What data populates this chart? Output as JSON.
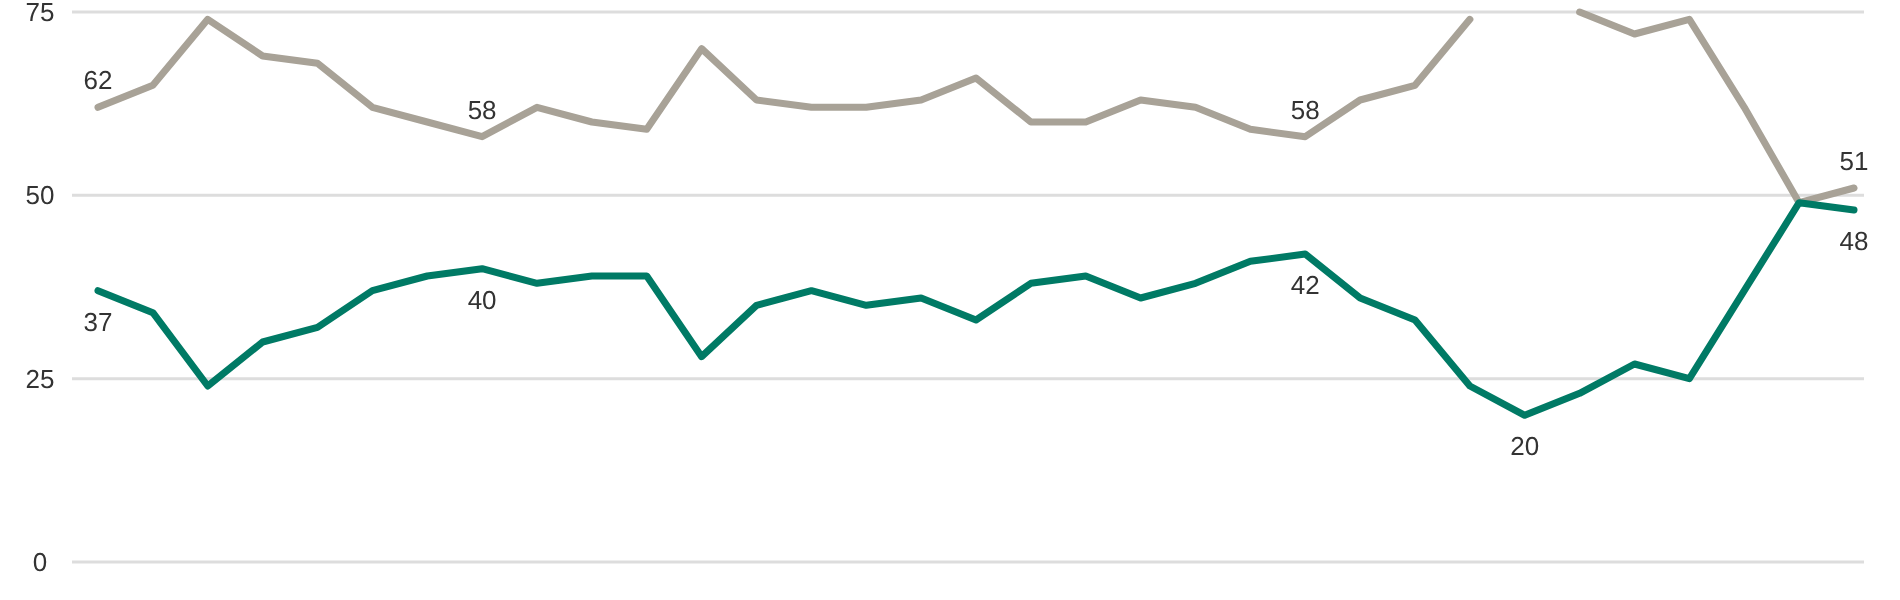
{
  "chart_data": {
    "type": "line",
    "categories": [
      null,
      null,
      null,
      null,
      null,
      null,
      null,
      null,
      null,
      null,
      null,
      null,
      null,
      null,
      null,
      null,
      null,
      null,
      null,
      null,
      null,
      null,
      null,
      null,
      null,
      null,
      null,
      null,
      null,
      null,
      null,
      null,
      null
    ],
    "series": [
      {
        "color": "#a8a297",
        "values": [
          62,
          65,
          74,
          69,
          68,
          62,
          60,
          58,
          62,
          60,
          59,
          70,
          63,
          62,
          62,
          63,
          66,
          60,
          60,
          63,
          62,
          59,
          58,
          63,
          65,
          74,
          null,
          75,
          72,
          74,
          62,
          49,
          51
        ],
        "value_labels": [
          "62",
          null,
          null,
          null,
          null,
          null,
          null,
          "58",
          null,
          null,
          null,
          null,
          null,
          null,
          null,
          null,
          null,
          null,
          null,
          null,
          null,
          null,
          "58",
          null,
          null,
          null,
          null,
          null,
          null,
          null,
          null,
          null,
          "51"
        ]
      },
      {
        "color": "#007a65",
        "values": [
          37,
          34,
          24,
          30,
          32,
          37,
          39,
          40,
          38,
          39,
          39,
          28,
          35,
          37,
          35,
          36,
          33,
          38,
          39,
          36,
          38,
          41,
          42,
          36,
          33,
          24,
          20,
          23,
          27,
          25,
          37,
          49,
          48
        ],
        "value_labels": [
          "37",
          null,
          null,
          null,
          null,
          null,
          null,
          "40",
          null,
          null,
          null,
          null,
          null,
          null,
          null,
          null,
          null,
          null,
          null,
          null,
          null,
          null,
          "42",
          null,
          null,
          null,
          "20",
          null,
          null,
          null,
          null,
          null,
          "48"
        ]
      }
    ],
    "ylim": [
      0,
      75
    ],
    "yticks": [
      0,
      25,
      50,
      75
    ],
    "grid": "y",
    "marker": "none",
    "line_style": "solid"
  }
}
